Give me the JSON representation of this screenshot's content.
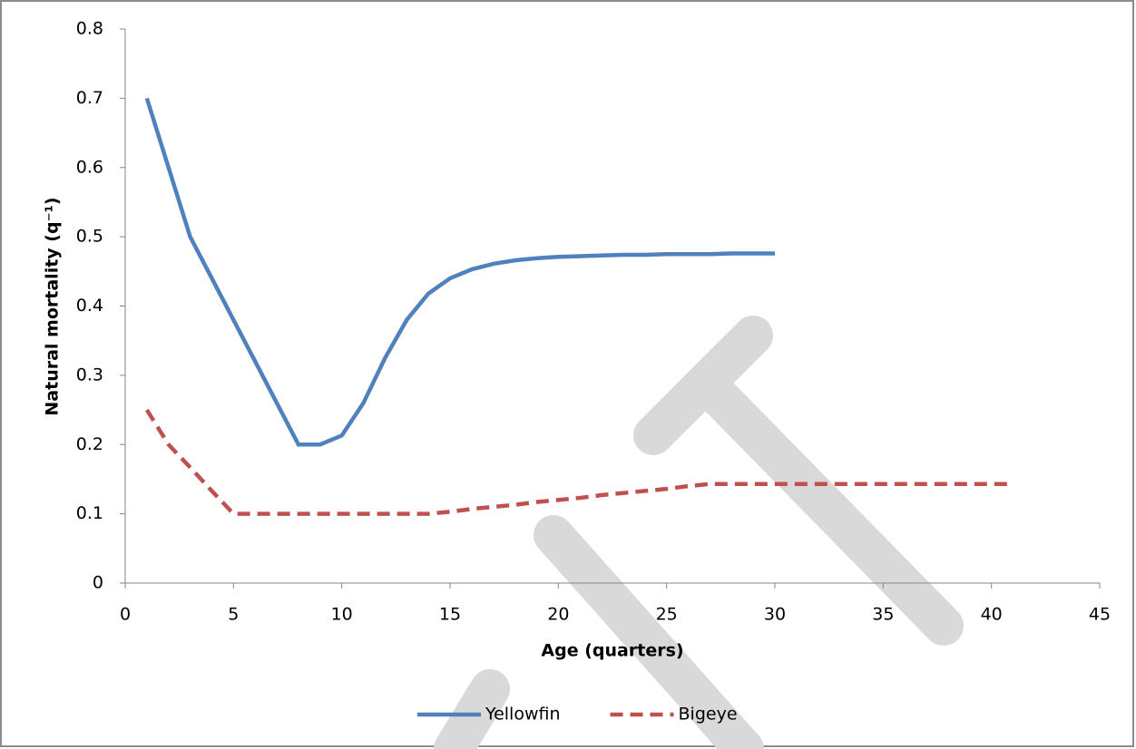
{
  "chart_data": {
    "type": "line",
    "x_label": "Age (quarters)",
    "y_label": "Natural mortality (q⁻¹)",
    "xlim": [
      0,
      45
    ],
    "xticks": [
      0,
      5,
      10,
      15,
      20,
      25,
      30,
      35,
      40,
      45
    ],
    "ylim": [
      0,
      0.8
    ],
    "yticks": [
      0,
      0.1,
      0.2,
      0.3,
      0.4,
      0.5,
      0.6,
      0.7,
      0.8
    ],
    "grid": false,
    "legend": "bottom",
    "series": [
      {
        "name": "Yellowfin",
        "color": "#4f81bd",
        "line_style": "solid",
        "x": [
          1,
          2,
          3,
          4,
          5,
          6,
          7,
          8,
          9,
          10,
          11,
          12,
          13,
          14,
          15,
          16,
          17,
          18,
          19,
          20,
          21,
          22,
          23,
          24,
          25,
          26,
          27,
          28,
          29,
          30
        ],
        "values": [
          0.7,
          0.6,
          0.5,
          0.44,
          0.38,
          0.32,
          0.26,
          0.2,
          0.2,
          0.213,
          0.26,
          0.325,
          0.38,
          0.418,
          0.44,
          0.453,
          0.461,
          0.466,
          0.469,
          0.471,
          0.472,
          0.473,
          0.474,
          0.474,
          0.475,
          0.475,
          0.475,
          0.476,
          0.476,
          0.476
        ]
      },
      {
        "name": "Bigeye",
        "color": "#c0504d",
        "line_style": "dashed",
        "x": [
          1,
          2,
          3,
          4,
          5,
          6,
          7,
          8,
          9,
          10,
          11,
          12,
          13,
          14,
          15,
          16,
          17,
          18,
          19,
          20,
          21,
          22,
          23,
          24,
          25,
          26,
          27,
          28,
          29,
          30,
          31,
          32,
          33,
          34,
          35,
          36,
          37,
          38,
          39,
          40,
          41
        ],
        "values": [
          0.25,
          0.2,
          0.167,
          0.133,
          0.1,
          0.1,
          0.1,
          0.1,
          0.1,
          0.1,
          0.1,
          0.1,
          0.1,
          0.1,
          0.103,
          0.107,
          0.11,
          0.113,
          0.117,
          0.12,
          0.123,
          0.127,
          0.13,
          0.133,
          0.136,
          0.14,
          0.143,
          0.143,
          0.143,
          0.143,
          0.143,
          0.143,
          0.143,
          0.143,
          0.143,
          0.143,
          0.143,
          0.143,
          0.143,
          0.143,
          0.143
        ]
      }
    ]
  }
}
